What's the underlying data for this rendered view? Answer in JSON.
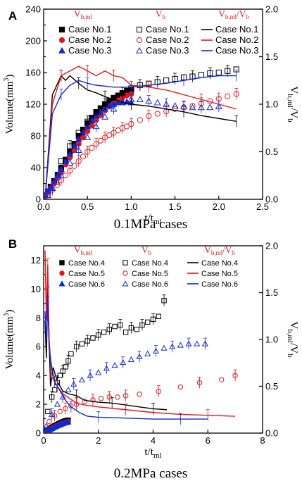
{
  "colors": {
    "black": "#000000",
    "red": "#e8141b",
    "blue": "#1428d2"
  },
  "chart_data": [
    {
      "type": "scatter",
      "panel_label": "A",
      "caption": "0.1MPa cases",
      "xlabel": "t/t",
      "xlabel_sub": "ml",
      "ylabel": "Volume(mm",
      "ylabel_sup": "3",
      "ylabel_tail": ")",
      "y2label_main": "V",
      "y2label_sub": "b,ml",
      "y2label_slash": "/V",
      "y2label_sub2": "b",
      "xlim": [
        0,
        2.5
      ],
      "ylim": [
        0,
        240
      ],
      "y2lim": [
        0,
        2.0
      ],
      "xticks": [
        0,
        0.5,
        1,
        1.5,
        2,
        2.5
      ],
      "xtick_labels": [
        "0.0",
        "0.5",
        "1.0",
        "1.5",
        "2.0",
        "2.5"
      ],
      "yticks": [
        0,
        20,
        40,
        60,
        80,
        100,
        120,
        140,
        160,
        180,
        200,
        220,
        240
      ],
      "ytick_labels": [
        "0",
        "",
        "40",
        "",
        "80",
        "",
        "120",
        "",
        "160",
        "",
        "200",
        "",
        "240"
      ],
      "y2ticks": [
        0,
        0.5,
        1.0,
        1.5,
        2.0
      ],
      "y2tick_labels": [
        "0.0",
        "0.5",
        "1.0",
        "1.5",
        "2.0"
      ],
      "legend_headers": [
        {
          "text": "V",
          "sub": "b,ml",
          "tail": ""
        },
        {
          "text": "V",
          "sub": "b",
          "tail": ""
        },
        {
          "text": "V",
          "sub": "b,ml",
          "tail": "/V",
          "sub2": "b"
        }
      ],
      "series": [
        {
          "name": "Case No.1",
          "kind": "filled",
          "marker": "square",
          "color": "#000000",
          "x": [
            0.02,
            0.05,
            0.08,
            0.12,
            0.16,
            0.2,
            0.25,
            0.3,
            0.35,
            0.4,
            0.45,
            0.5,
            0.55,
            0.6,
            0.65,
            0.7,
            0.75,
            0.8,
            0.85,
            0.9,
            0.95,
            1.0
          ],
          "y": [
            5,
            10,
            16,
            23,
            31,
            40,
            50,
            60,
            70,
            80,
            88,
            96,
            103,
            110,
            115,
            120,
            124,
            128,
            131,
            134,
            137,
            138
          ]
        },
        {
          "name": "Case No.2",
          "kind": "filled",
          "marker": "circle",
          "color": "#e8141b",
          "x": [
            0.02,
            0.05,
            0.08,
            0.12,
            0.16,
            0.2,
            0.25,
            0.3,
            0.35,
            0.4,
            0.45,
            0.5,
            0.55,
            0.6,
            0.65,
            0.7,
            0.75,
            0.8,
            0.85,
            0.9,
            0.95,
            1.0
          ],
          "y": [
            4,
            9,
            14,
            20,
            27,
            35,
            44,
            53,
            62,
            70,
            78,
            86,
            93,
            100,
            106,
            112,
            117,
            121,
            125,
            128,
            131,
            133
          ]
        },
        {
          "name": "Case No.3",
          "kind": "filled",
          "marker": "triangle",
          "color": "#1428d2",
          "x": [
            0.02,
            0.05,
            0.08,
            0.12,
            0.16,
            0.2,
            0.25,
            0.3,
            0.35,
            0.4,
            0.45,
            0.5,
            0.55,
            0.6,
            0.65,
            0.7,
            0.75,
            0.8,
            0.85,
            0.9,
            0.95,
            1.0
          ],
          "y": [
            5,
            10,
            15,
            22,
            30,
            38,
            48,
            57,
            67,
            76,
            84,
            92,
            99,
            105,
            110,
            114,
            118,
            120,
            122,
            123,
            123,
            122
          ]
        },
        {
          "name": "Case No.1",
          "kind": "open",
          "marker": "square",
          "color": "#000000",
          "x": [
            0.2,
            0.3,
            0.4,
            0.5,
            0.6,
            0.7,
            0.8,
            0.9,
            1.0,
            1.1,
            1.2,
            1.3,
            1.4,
            1.5,
            1.6,
            1.7,
            1.8,
            1.9,
            2.0,
            2.1,
            2.2
          ],
          "y": [
            48,
            67,
            84,
            98,
            110,
            120,
            128,
            134,
            140,
            144,
            146,
            148,
            150,
            152,
            154,
            155,
            157,
            159,
            160,
            162,
            164
          ]
        },
        {
          "name": "Case No.2",
          "kind": "open",
          "marker": "circle",
          "color": "#e8141b",
          "x": [
            0.05,
            0.1,
            0.15,
            0.2,
            0.25,
            0.3,
            0.35,
            0.4,
            0.45,
            0.5,
            0.55,
            0.6,
            0.65,
            0.7,
            0.75,
            0.8,
            0.85,
            0.9,
            0.95,
            1.0,
            1.1,
            1.2,
            1.3,
            1.4,
            1.5,
            1.6,
            1.7,
            1.8,
            1.9,
            2.0,
            2.1,
            2.2
          ],
          "y": [
            5,
            12,
            18,
            24,
            30,
            36,
            42,
            48,
            54,
            60,
            65,
            70,
            74,
            78,
            81,
            84,
            87,
            90,
            92,
            95,
            100,
            105,
            108,
            111,
            114,
            116,
            118,
            121,
            124,
            127,
            130,
            133
          ]
        },
        {
          "name": "Case No.3",
          "kind": "open",
          "marker": "triangle",
          "color": "#1428d2",
          "x": [
            0.05,
            0.1,
            0.15,
            0.2,
            0.3,
            0.4,
            0.5,
            0.6,
            0.7,
            0.8,
            0.9,
            1.0,
            1.1,
            1.2,
            1.3,
            1.4,
            1.5,
            1.6,
            1.7,
            1.8,
            1.9,
            2.0
          ],
          "y": [
            5,
            14,
            22,
            30,
            46,
            62,
            78,
            92,
            104,
            114,
            122,
            126,
            126,
            124,
            122,
            120,
            118,
            117,
            116,
            116,
            116,
            117
          ]
        },
        {
          "name": "Case No.1",
          "kind": "line",
          "axis": "right",
          "color": "#000000",
          "x": [
            0.02,
            0.1,
            0.2,
            0.25,
            0.3,
            0.4,
            0.5,
            0.6,
            0.7,
            0.8,
            0.9,
            1.0,
            1.2,
            1.4,
            1.6,
            1.8,
            2.0,
            2.2
          ],
          "y": [
            0.05,
            1.1,
            1.3,
            1.25,
            1.3,
            1.22,
            1.15,
            1.12,
            1.08,
            1.05,
            1.02,
            1.0,
            0.98,
            0.95,
            0.92,
            0.88,
            0.85,
            0.82
          ]
        },
        {
          "name": "Case No.2",
          "kind": "line",
          "axis": "right",
          "color": "#e8141b",
          "x": [
            0.02,
            0.1,
            0.2,
            0.3,
            0.4,
            0.5,
            0.6,
            0.7,
            0.8,
            0.9,
            1.0,
            1.2,
            1.4,
            1.6,
            1.8,
            2.0,
            2.2
          ],
          "y": [
            0.05,
            1.0,
            1.3,
            1.35,
            1.4,
            1.35,
            1.3,
            1.35,
            1.3,
            1.28,
            1.2,
            1.18,
            1.15,
            1.1,
            1.05,
            1.0,
            0.95
          ]
        },
        {
          "name": "Case No.3",
          "kind": "line",
          "axis": "right",
          "color": "#1428d2",
          "x": [
            0.02,
            0.1,
            0.2,
            0.3,
            0.4,
            0.5,
            0.6,
            0.8,
            1.0,
            1.2,
            1.4,
            1.6,
            1.8,
            2.0,
            2.2
          ],
          "y": [
            0.05,
            0.9,
            1.1,
            1.2,
            1.25,
            1.22,
            1.2,
            1.18,
            1.18,
            1.2,
            1.22,
            1.25,
            1.28,
            1.3,
            1.3
          ]
        }
      ]
    },
    {
      "type": "scatter",
      "panel_label": "B",
      "caption": "0.2MPa cases",
      "xlabel": "t/t",
      "xlabel_sub": "ml",
      "ylabel": "Volume(mm",
      "ylabel_sup": "3",
      "ylabel_tail": ")",
      "y2label_main": "V",
      "y2label_sub": "b,ml",
      "y2label_slash": "/V",
      "y2label_sub2": "b",
      "xlim": [
        0,
        8
      ],
      "ylim": [
        0,
        13
      ],
      "y2lim": [
        0,
        2.0
      ],
      "xticks": [
        0,
        2,
        4,
        6,
        8
      ],
      "xtick_labels": [
        "0",
        "2",
        "4",
        "6",
        "8"
      ],
      "yticks": [
        0,
        1,
        2,
        3,
        4,
        5,
        6,
        7,
        8,
        9,
        10,
        11,
        12
      ],
      "ytick_labels": [
        "0",
        "",
        "2",
        "",
        "4",
        "",
        "6",
        "",
        "8",
        "",
        "10",
        "",
        "12"
      ],
      "y2ticks": [
        0,
        0.5,
        1.0,
        1.5,
        2.0
      ],
      "y2tick_labels": [
        "0.0",
        "0.5",
        "1.0",
        "1.5",
        "2.0"
      ],
      "legend_headers": [
        {
          "text": "V",
          "sub": "b,ml",
          "tail": ""
        },
        {
          "text": "V",
          "sub": "b",
          "tail": ""
        },
        {
          "text": "V",
          "sub": "b,ml",
          "tail": "/V",
          "sub2": "b"
        }
      ],
      "series": [
        {
          "name": "Case No.4",
          "kind": "filled",
          "marker": "square",
          "color": "#000000",
          "x": [
            0.05,
            0.1,
            0.15,
            0.2,
            0.25,
            0.3,
            0.35,
            0.4,
            0.45,
            0.5,
            0.55,
            0.6,
            0.65,
            0.7,
            0.75,
            0.8,
            0.85,
            0.9
          ],
          "y": [
            0.08,
            0.15,
            0.22,
            0.28,
            0.34,
            0.4,
            0.45,
            0.5,
            0.55,
            0.6,
            0.65,
            0.7,
            0.74,
            0.78,
            0.82,
            0.85,
            0.88,
            0.9
          ]
        },
        {
          "name": "Case No.5",
          "kind": "filled",
          "marker": "circle",
          "color": "#e8141b",
          "x": [
            0.05,
            0.1,
            0.15,
            0.2,
            0.25,
            0.3,
            0.35,
            0.4,
            0.45,
            0.5,
            0.55,
            0.6,
            0.65,
            0.7,
            0.75,
            0.8,
            0.85,
            0.9
          ],
          "y": [
            0.06,
            0.12,
            0.18,
            0.24,
            0.3,
            0.35,
            0.4,
            0.45,
            0.5,
            0.54,
            0.58,
            0.62,
            0.66,
            0.7,
            0.73,
            0.76,
            0.78,
            0.8
          ]
        },
        {
          "name": "Case No.6",
          "kind": "filled",
          "marker": "triangle",
          "color": "#1428d2",
          "x": [
            0.05,
            0.1,
            0.15,
            0.2,
            0.25,
            0.3,
            0.35,
            0.4,
            0.45,
            0.5,
            0.55,
            0.6,
            0.65,
            0.7,
            0.75,
            0.8,
            0.85,
            0.9
          ],
          "y": [
            0.05,
            0.1,
            0.15,
            0.2,
            0.26,
            0.31,
            0.36,
            0.41,
            0.46,
            0.5,
            0.54,
            0.58,
            0.62,
            0.66,
            0.7,
            0.72,
            0.75,
            0.77
          ]
        },
        {
          "name": "Case No.4",
          "kind": "open",
          "marker": "square",
          "color": "#000000",
          "x": [
            0.15,
            0.3,
            0.4,
            0.5,
            0.6,
            0.7,
            0.8,
            0.9,
            1.0,
            1.2,
            1.4,
            1.6,
            1.8,
            2.0,
            2.2,
            2.4,
            2.6,
            2.8,
            3.0,
            3.2,
            3.4,
            3.6,
            3.8,
            4.0,
            4.2,
            4.4
          ],
          "y": [
            1.5,
            2.5,
            3.0,
            3.5,
            4.0,
            4.3,
            4.6,
            5.0,
            5.5,
            6.0,
            6.2,
            6.4,
            6.6,
            6.8,
            7.0,
            7.2,
            7.4,
            7.5,
            7.0,
            7.3,
            7.2,
            7.5,
            7.7,
            7.9,
            8.1,
            9.2
          ]
        },
        {
          "name": "Case No.5",
          "kind": "open",
          "marker": "circle",
          "color": "#e8141b",
          "x": [
            0.2,
            0.4,
            0.6,
            0.8,
            1.0,
            1.2,
            1.5,
            1.8,
            2.1,
            2.4,
            2.7,
            3.0,
            3.5,
            4.2,
            5.0,
            5.7,
            6.5,
            7.0
          ],
          "y": [
            0.8,
            1.2,
            1.5,
            1.7,
            1.9,
            2.0,
            2.2,
            2.3,
            2.4,
            2.5,
            2.5,
            2.6,
            2.7,
            2.9,
            3.2,
            3.5,
            3.7,
            4.0
          ]
        },
        {
          "name": "Case No.6",
          "kind": "open",
          "marker": "triangle",
          "color": "#1428d2",
          "x": [
            0.1,
            0.3,
            0.5,
            0.7,
            0.9,
            1.1,
            1.4,
            1.7,
            2.0,
            2.3,
            2.6,
            2.9,
            3.2,
            3.5,
            3.8,
            4.1,
            4.4,
            4.7,
            5.0,
            5.3,
            5.6,
            5.9
          ],
          "y": [
            0.5,
            1.3,
            2.0,
            2.5,
            3.0,
            3.4,
            3.7,
            4.0,
            4.2,
            4.5,
            4.7,
            4.9,
            5.1,
            5.3,
            5.5,
            5.7,
            5.9,
            6.0,
            6.1,
            6.2,
            6.2,
            6.2
          ]
        },
        {
          "name": "Case No.4",
          "kind": "line",
          "axis": "right",
          "color": "#000000",
          "x": [
            0.05,
            0.1,
            0.15,
            0.25,
            0.35,
            0.5,
            0.7,
            0.9,
            1.2,
            1.5,
            2.0,
            2.5,
            3.0,
            3.5,
            4.0,
            4.5
          ],
          "y": [
            1.2,
            0.8,
            1.5,
            0.5,
            0.7,
            0.55,
            0.45,
            0.42,
            0.4,
            0.35,
            0.33,
            0.32,
            0.3,
            0.28,
            0.26,
            0.25
          ]
        },
        {
          "name": "Case No.5",
          "kind": "line",
          "axis": "right",
          "color": "#e8141b",
          "x": [
            0.05,
            0.1,
            0.15,
            0.2,
            0.3,
            0.5,
            0.7,
            0.9,
            1.2,
            1.5,
            2.0,
            3.0,
            4.0,
            5.0,
            6.0,
            7.0
          ],
          "y": [
            1.95,
            1.2,
            1.8,
            1.0,
            0.6,
            0.5,
            0.42,
            0.38,
            0.32,
            0.3,
            0.28,
            0.25,
            0.22,
            0.2,
            0.19,
            0.18
          ]
        },
        {
          "name": "Case No.6",
          "kind": "line",
          "axis": "right",
          "color": "#1428d2",
          "x": [
            0.05,
            0.1,
            0.15,
            0.2,
            0.3,
            0.4,
            0.6,
            0.8,
            1.0,
            1.3,
            1.6,
            2.0,
            3.0,
            4.0,
            5.0,
            6.0
          ],
          "y": [
            1.3,
            1.0,
            1.4,
            0.9,
            0.7,
            0.55,
            0.45,
            0.35,
            0.28,
            0.22,
            0.18,
            0.17,
            0.16,
            0.15,
            0.15,
            0.15
          ]
        }
      ]
    }
  ]
}
